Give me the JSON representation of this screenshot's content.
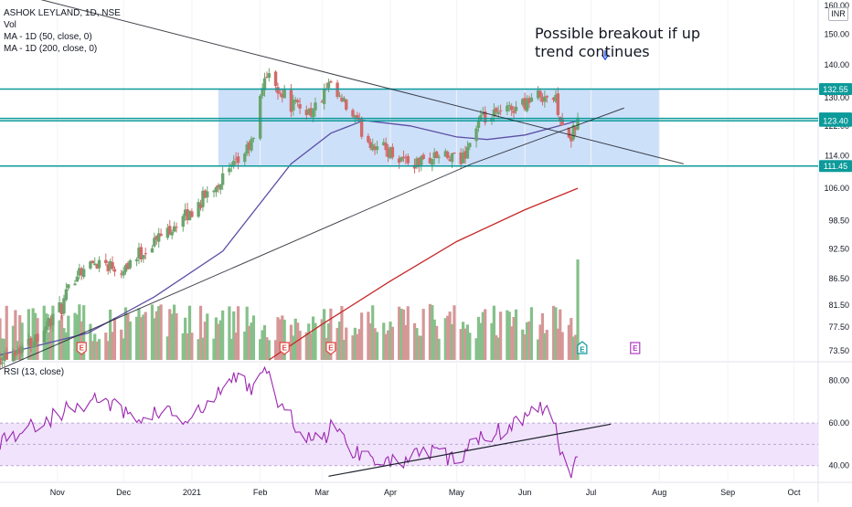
{
  "header": {
    "symbol": "ASHOK LEYLAND, 1D, NSE",
    "vol": "Vol",
    "ma50": "MA - 1D (50, close, 0)",
    "ma200": "MA - 1D (200, close, 0)",
    "rsi": "RSI (13, close)"
  },
  "annotation": {
    "line1": "Possible breakout if up",
    "line2": "trend continues"
  },
  "currency": "INR",
  "colors": {
    "up": "#6aa56e",
    "down": "#d26a6a",
    "vol_up": "#86c08a",
    "vol_down": "#d69797",
    "ma50": "#5c4fa6",
    "ma200": "#c62828",
    "level_line": "#0c9a9a",
    "zone_fill": "#bcd6f7",
    "rsi_line": "#9c27b0",
    "rsi_band": "#f0e3fb",
    "trend_line": "#1e222d",
    "arrow": "#1e53e5",
    "earnings_red": "#e0463e",
    "earnings_teal": "#0c9a9a",
    "earnings_purple": "#b03ac4"
  },
  "chart_data": {
    "type": "candlestick",
    "y_scale": "log",
    "price_axis": {
      "ticks": [
        73.5,
        77.5,
        81.5,
        86.5,
        92.5,
        98.5,
        106,
        114,
        122,
        130,
        140,
        150,
        160
      ],
      "tick_labels": [
        "73.50",
        "77.50",
        "81.50",
        "86.50",
        "92.50",
        "98.50",
        "106.00",
        "114.00",
        "122.00",
        "130.00",
        "140.00",
        "150.00",
        "160.00"
      ],
      "range": [
        72,
        162
      ]
    },
    "x_axis": {
      "labels": [
        "Nov",
        "Dec",
        "2021",
        "Feb",
        "Mar",
        "Apr",
        "May",
        "Jun",
        "Jul",
        "Aug",
        "Sep",
        "Oct"
      ],
      "label_dates": [
        "2020-11-01",
        "2020-12-01",
        "2021-01-01",
        "2021-02-01",
        "2021-03-01",
        "2021-04-01",
        "2021-05-01",
        "2021-06-01",
        "2021-07-01",
        "2021-08-01",
        "2021-09-01",
        "2021-10-01"
      ],
      "range": [
        "2020-10-06",
        "2021-10-12"
      ]
    },
    "price_key_points": [
      [
        "2020-10-06",
        72.5
      ],
      [
        "2020-10-20",
        75.0
      ],
      [
        "2020-11-03",
        81.0
      ],
      [
        "2020-11-10",
        88.0
      ],
      [
        "2020-11-20",
        90.0
      ],
      [
        "2020-11-30",
        88.5
      ],
      [
        "2020-12-10",
        92.0
      ],
      [
        "2020-12-22",
        97.0
      ],
      [
        "2020-12-31",
        100.0
      ],
      [
        "2021-01-10",
        106.0
      ],
      [
        "2021-01-20",
        111.0
      ],
      [
        "2021-01-29",
        118.0
      ],
      [
        "2021-02-03",
        137.0
      ],
      [
        "2021-02-08",
        134.0
      ],
      [
        "2021-02-15",
        128.0
      ],
      [
        "2021-02-25",
        126.0
      ],
      [
        "2021-03-04",
        133.0
      ],
      [
        "2021-03-12",
        127.0
      ],
      [
        "2021-03-22",
        118.0
      ],
      [
        "2021-04-01",
        115.0
      ],
      [
        "2021-04-12",
        112.0
      ],
      [
        "2021-04-22",
        114.0
      ],
      [
        "2021-05-03",
        112.5
      ],
      [
        "2021-05-11",
        123.0
      ],
      [
        "2021-05-20",
        125.0
      ],
      [
        "2021-05-31",
        128.5
      ],
      [
        "2021-06-09",
        131.0
      ],
      [
        "2021-06-15",
        129.0
      ],
      [
        "2021-06-21",
        117.0
      ],
      [
        "2021-06-25",
        123.5
      ]
    ],
    "last_volume_spike_date": "2021-06-25",
    "volume_range": [
      0,
      100
    ],
    "ma50_points": [
      [
        "2020-10-06",
        72.8
      ],
      [
        "2020-11-15",
        76.5
      ],
      [
        "2020-12-15",
        83.0
      ],
      [
        "2021-01-15",
        92.0
      ],
      [
        "2021-02-15",
        112.0
      ],
      [
        "2021-03-05",
        120.0
      ],
      [
        "2021-03-20",
        123.5
      ],
      [
        "2021-04-10",
        122.0
      ],
      [
        "2021-05-01",
        119.0
      ],
      [
        "2021-05-15",
        118.3
      ],
      [
        "2021-06-01",
        119.5
      ],
      [
        "2021-06-25",
        123.4
      ]
    ],
    "ma200_points": [
      [
        "2021-02-05",
        72.0
      ],
      [
        "2021-03-01",
        78.0
      ],
      [
        "2021-04-01",
        86.0
      ],
      [
        "2021-05-01",
        94.0
      ],
      [
        "2021-06-01",
        101.0
      ],
      [
        "2021-06-25",
        106.0
      ]
    ],
    "price_levels": [
      {
        "value": 132.55,
        "label": "132.55"
      },
      {
        "value": 124.05,
        "label": "124.05"
      },
      {
        "value": 123.4,
        "label": "123.40"
      },
      {
        "value": 111.45,
        "label": "111.45"
      }
    ],
    "zone": {
      "from_date": "2021-01-13",
      "to_date": "2021-08-01",
      "low": 111.45,
      "high": 132.55
    },
    "trendlines": [
      {
        "from": [
          "2020-10-06",
          166.0
        ],
        "to": [
          "2021-08-12",
          112.0
        ]
      },
      {
        "from": [
          "2020-10-06",
          70.5
        ],
        "to": [
          "2021-05-08",
          112.0
        ]
      },
      {
        "from": [
          "2021-05-08",
          112.0
        ],
        "to": [
          "2021-07-16",
          127.0
        ]
      }
    ],
    "earnings_markers": [
      {
        "date": "2020-11-12",
        "kind": "past"
      },
      {
        "date": "2021-02-12",
        "kind": "past"
      },
      {
        "date": "2021-03-05",
        "kind": "past"
      },
      {
        "date": "2021-06-27",
        "kind": "recent"
      },
      {
        "date": "2021-07-21",
        "kind": "upcoming"
      }
    ],
    "rsi": {
      "ticks": [
        40,
        60,
        80
      ],
      "tick_labels": [
        "40.00",
        "60.00",
        "80.00"
      ],
      "range": [
        33,
        88
      ],
      "band": [
        40,
        60
      ],
      "mid": 50,
      "key_points": [
        [
          "2020-10-06",
          52
        ],
        [
          "2020-10-20",
          58
        ],
        [
          "2020-11-05",
          66
        ],
        [
          "2020-11-20",
          72
        ],
        [
          "2020-12-05",
          62
        ],
        [
          "2020-12-20",
          66
        ],
        [
          "2020-12-30",
          60
        ],
        [
          "2021-01-12",
          72
        ],
        [
          "2021-01-20",
          82
        ],
        [
          "2021-01-28",
          77
        ],
        [
          "2021-02-02",
          87
        ],
        [
          "2021-02-10",
          68
        ],
        [
          "2021-02-20",
          56
        ],
        [
          "2021-03-01",
          50
        ],
        [
          "2021-03-05",
          60
        ],
        [
          "2021-03-15",
          47
        ],
        [
          "2021-03-28",
          44
        ],
        [
          "2021-04-05",
          40
        ],
        [
          "2021-04-12",
          44
        ],
        [
          "2021-04-22",
          46
        ],
        [
          "2021-05-03",
          42
        ],
        [
          "2021-05-12",
          55
        ],
        [
          "2021-05-20",
          56
        ],
        [
          "2021-05-31",
          63
        ],
        [
          "2021-06-08",
          67
        ],
        [
          "2021-06-14",
          62
        ],
        [
          "2021-06-18",
          45
        ],
        [
          "2021-06-22",
          38
        ],
        [
          "2021-06-27",
          52
        ]
      ],
      "trendlines": [
        {
          "from": [
            "2021-03-04",
            35.0
          ],
          "to": [
            "2021-07-10",
            59.5
          ]
        }
      ]
    }
  }
}
